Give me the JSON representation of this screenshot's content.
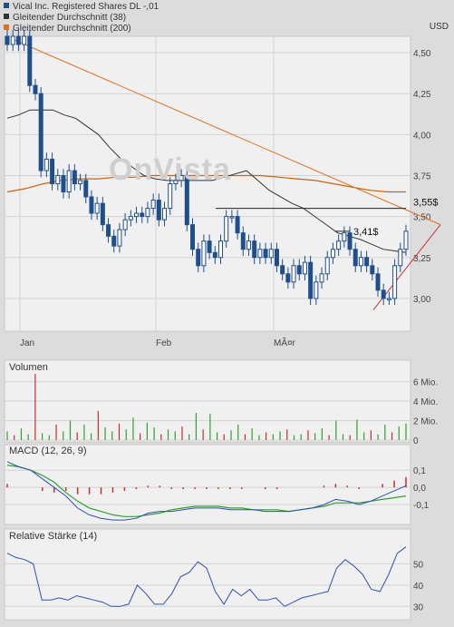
{
  "legend": [
    {
      "label": "Vical Inc. Registered Shares DL -,01",
      "color": "#1f4e8c"
    },
    {
      "label": "Gleitender Durchschnitt (38)",
      "color": "#333333"
    },
    {
      "label": "Gleitender Durchschnitt (200)",
      "color": "#e07020"
    }
  ],
  "currency": "USD",
  "watermark": "OnVista",
  "chart_data": [
    {
      "type": "candlestick",
      "title": "",
      "y_ticks": [
        "4,50",
        "4,25",
        "4,00",
        "3,75",
        "3,50",
        "3,25",
        "3,00"
      ],
      "y_tick_values": [
        4.5,
        4.25,
        4.0,
        3.75,
        3.5,
        3.25,
        3.0
      ],
      "ylim": [
        2.8,
        4.6
      ],
      "x_ticks": [
        "Jan",
        "Feb",
        "MÃ¤r"
      ],
      "annotations": [
        "3,55$",
        "3,41$"
      ],
      "annotation_values": [
        3.55,
        3.41
      ],
      "grid": true,
      "series": [
        {
          "name": "Vical Inc. Registered Shares DL -,01",
          "close": [
            4.55,
            4.6,
            4.55,
            4.6,
            4.3,
            4.25,
            3.78,
            3.85,
            3.7,
            3.75,
            3.65,
            3.78,
            3.7,
            3.72,
            3.62,
            3.52,
            3.58,
            3.45,
            3.38,
            3.32,
            3.42,
            3.48,
            3.5,
            3.52,
            3.5,
            3.55,
            3.6,
            3.48,
            3.55,
            3.7,
            3.72,
            3.75,
            3.45,
            3.3,
            3.2,
            3.35,
            3.28,
            3.25,
            3.35,
            3.5,
            3.5,
            3.4,
            3.3,
            3.35,
            3.25,
            3.3,
            3.25,
            3.3,
            3.2,
            3.15,
            3.1,
            3.2,
            3.15,
            3.22,
            3.0,
            3.1,
            3.15,
            3.25,
            3.3,
            3.35,
            3.4,
            3.3,
            3.2,
            3.25,
            3.2,
            3.15,
            3.05,
            3.0,
            3.0,
            3.2,
            3.3,
            3.41
          ]
        },
        {
          "name": "Gleitender Durchschnitt (38)",
          "values": [
            4.1,
            4.12,
            4.15,
            4.15,
            4.15,
            4.12,
            4.1,
            4.05,
            4.0,
            3.92,
            3.85,
            3.8,
            3.75,
            3.73,
            3.72,
            3.72,
            3.72,
            3.72,
            3.72,
            3.74,
            3.76,
            3.78,
            3.72,
            3.66,
            3.62,
            3.58,
            3.55,
            3.5,
            3.45,
            3.4,
            3.38,
            3.36,
            3.33,
            3.3,
            3.29,
            3.28
          ]
        },
        {
          "name": "Gleitender Durchschnitt (200)",
          "values": [
            3.65,
            3.67,
            3.7,
            3.72,
            3.73,
            3.73,
            3.74,
            3.74,
            3.75,
            3.75,
            3.75,
            3.75,
            3.75,
            3.75,
            3.75,
            3.74,
            3.73,
            3.72,
            3.7,
            3.68,
            3.66,
            3.65,
            3.65
          ]
        },
        {
          "name": "Trendlinie",
          "values": [
            4.58,
            3.45
          ]
        }
      ]
    },
    {
      "type": "bar",
      "title": "Volumen",
      "y_ticks": [
        "6 Mio.",
        "4 Mio.",
        "2 Mio.",
        "0"
      ],
      "y_tick_values": [
        6,
        4,
        2,
        0
      ],
      "ylim": [
        0,
        7
      ],
      "values": [
        0.9,
        0.5,
        1.2,
        0.6,
        6.8,
        0.7,
        0.5,
        1.6,
        0.9,
        2.0,
        0.8,
        1.6,
        0.7,
        3.0,
        1.3,
        0.9,
        1.7,
        1.1,
        2.3,
        0.7,
        1.8,
        1.3,
        0.6,
        1.1,
        0.9,
        1.4,
        0.6,
        2.8,
        1.1,
        2.7,
        0.8,
        0.6,
        1.0,
        1.6,
        0.6,
        1.2,
        0.5,
        0.8,
        0.6,
        0.9,
        1.1,
        0.5,
        0.6,
        1.0,
        0.7,
        1.2,
        0.5,
        2.0,
        0.6,
        0.5,
        2.1,
        0.8,
        1.0,
        0.6,
        1.6,
        0.8,
        1.4,
        1.7
      ]
    },
    {
      "type": "line",
      "title": "MACD (12, 26, 9)",
      "y_ticks": [
        "0,1",
        "0,0",
        "-0,1"
      ],
      "y_tick_values": [
        0.1,
        0.0,
        -0.1
      ],
      "ylim": [
        -0.2,
        0.17
      ],
      "series": [
        {
          "name": "MACD",
          "values": [
            0.15,
            0.12,
            0.1,
            0.05,
            0.0,
            -0.05,
            -0.12,
            -0.16,
            -0.18,
            -0.19,
            -0.19,
            -0.18,
            -0.15,
            -0.14,
            -0.14,
            -0.13,
            -0.12,
            -0.12,
            -0.12,
            -0.13,
            -0.13,
            -0.13,
            -0.14,
            -0.14,
            -0.14,
            -0.13,
            -0.12,
            -0.1,
            -0.07,
            -0.08,
            -0.1,
            -0.08,
            -0.05,
            -0.02,
            0.01
          ]
        },
        {
          "name": "Signal",
          "values": [
            0.13,
            0.12,
            0.1,
            0.07,
            0.03,
            -0.03,
            -0.08,
            -0.12,
            -0.14,
            -0.16,
            -0.17,
            -0.17,
            -0.16,
            -0.15,
            -0.13,
            -0.12,
            -0.11,
            -0.11,
            -0.11,
            -0.12,
            -0.12,
            -0.13,
            -0.13,
            -0.13,
            -0.14,
            -0.13,
            -0.12,
            -0.11,
            -0.09,
            -0.09,
            -0.09,
            -0.08,
            -0.07,
            -0.06,
            -0.05
          ]
        },
        {
          "name": "Histogramm",
          "values": [
            0.02,
            0,
            0,
            -0.02,
            -0.03,
            -0.02,
            -0.04,
            -0.04,
            -0.04,
            -0.03,
            -0.02,
            -0.01,
            0.01,
            0.01,
            -0.01,
            -0.01,
            -0.01,
            -0.01,
            -0.01,
            -0.01,
            -0.01,
            0,
            -0.01,
            -0.01,
            0,
            0,
            0,
            0.01,
            0.02,
            0.01,
            -0.01,
            0,
            0.02,
            0.04,
            0.06
          ]
        }
      ]
    },
    {
      "type": "line",
      "title": "Relative Stärke (14)",
      "y_ticks": [
        "50",
        "40",
        "30"
      ],
      "y_tick_values": [
        50,
        40,
        30
      ],
      "ylim": [
        25,
        60
      ],
      "series": [
        {
          "name": "RSI",
          "values": [
            55,
            53,
            52,
            50,
            33,
            33,
            34,
            33,
            35,
            34,
            33,
            32,
            30,
            30,
            31,
            40,
            36,
            31,
            31,
            36,
            44,
            46,
            51,
            48,
            37,
            31,
            38,
            35,
            38,
            33,
            33,
            34,
            30,
            32,
            34,
            35,
            36,
            37,
            48,
            52,
            49,
            45,
            38,
            37,
            45,
            55,
            58
          ]
        }
      ]
    }
  ]
}
